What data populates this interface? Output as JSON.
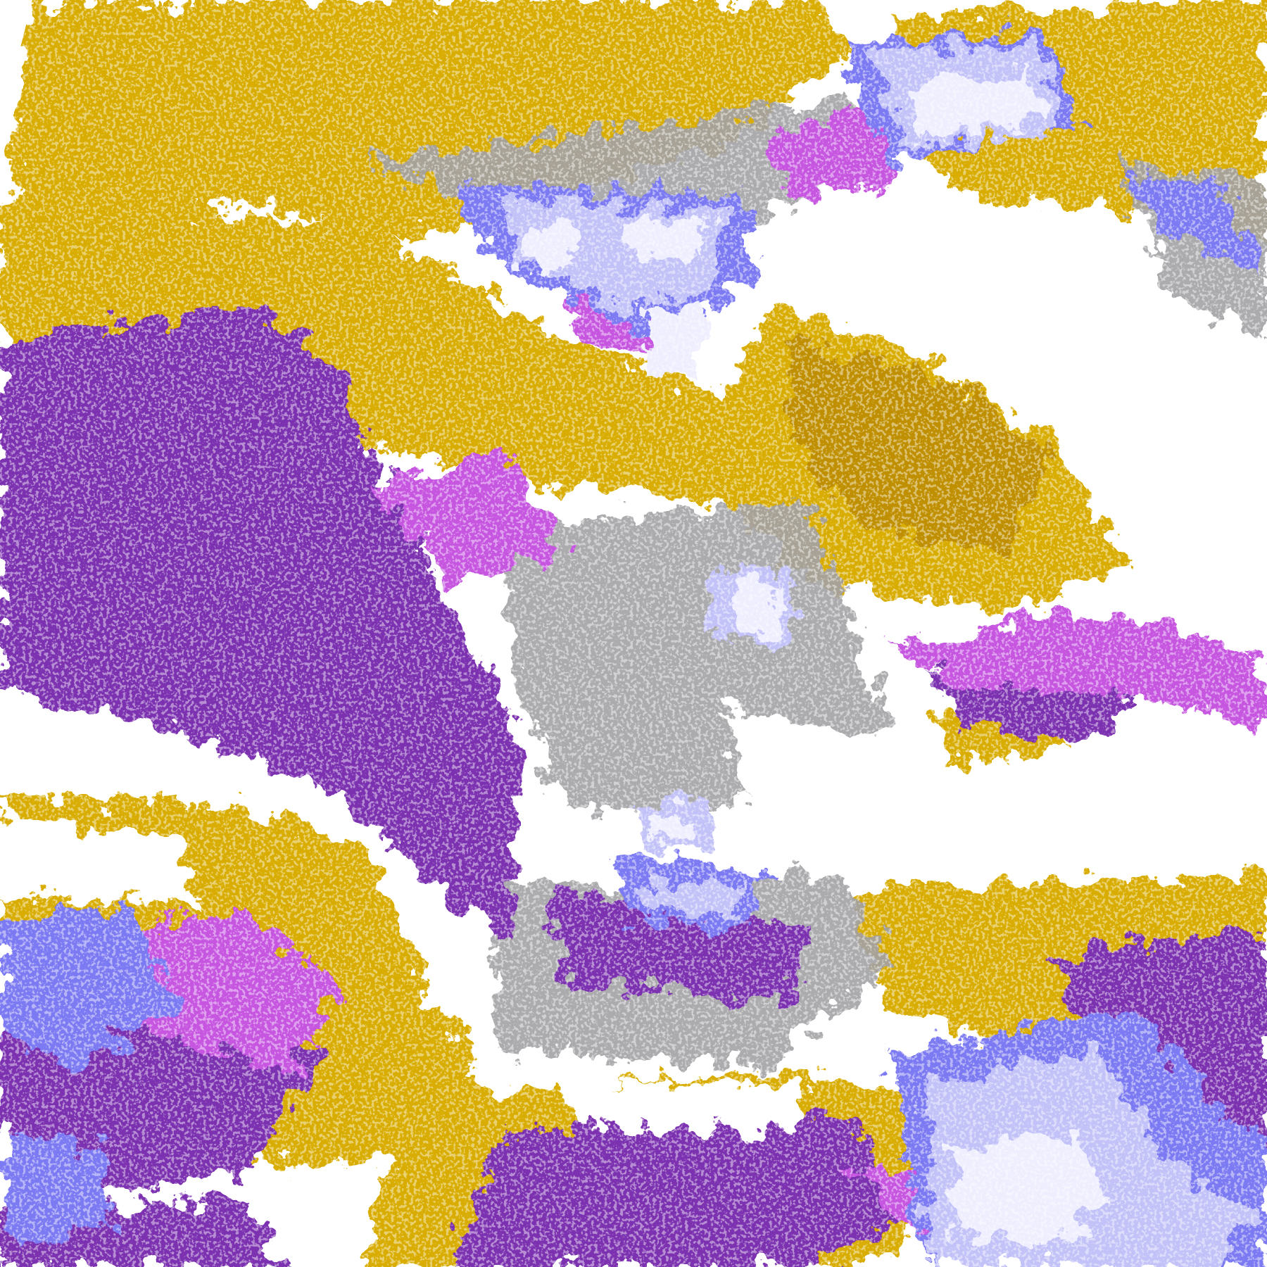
{
  "map": {
    "type": "satellite cloud-classification image",
    "palette": {
      "clear": "#ffffff",
      "gold": "#d8ac00",
      "dark_gold": "#bf8f00",
      "purple": "#7b30b0",
      "magenta": "#c655e0",
      "violet_blue": "#7c7af2",
      "lavender": "#c2c2f8",
      "pale_lavender": "#eeeeff",
      "gray": "#a2a2a6",
      "outside_swath": "#ffffff"
    }
  }
}
